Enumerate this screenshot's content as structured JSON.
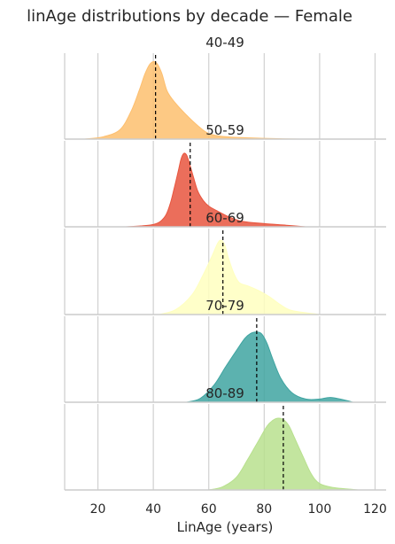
{
  "chart_data": {
    "type": "area",
    "title": "linAge distributions by decade — Female",
    "xlabel": "LinAge (years)",
    "ylabel": "",
    "xlim": [
      8,
      124
    ],
    "x_ticks": [
      20,
      40,
      60,
      80,
      100,
      120
    ],
    "grid": "vertical",
    "legend": "none",
    "series": [
      {
        "name": "40-49",
        "color": "#fdbf6f",
        "marker_x": 40.8,
        "x": [
          15,
          22,
          28,
          32,
          35,
          37,
          39,
          41,
          43,
          45,
          48,
          52,
          56,
          60,
          66,
          75,
          85,
          93
        ],
        "y": [
          0.0,
          0.03,
          0.12,
          0.35,
          0.62,
          0.82,
          0.95,
          0.96,
          0.83,
          0.6,
          0.45,
          0.3,
          0.17,
          0.07,
          0.03,
          0.015,
          0.005,
          0.0
        ]
      },
      {
        "name": "50-59",
        "color": "#e8553e",
        "marker_x": 53.3,
        "x": [
          30,
          40,
          44,
          46,
          47.5,
          49,
          50,
          51,
          52,
          53,
          54.5,
          56,
          58,
          60,
          63,
          67,
          72,
          80,
          88,
          95
        ],
        "y": [
          0.0,
          0.03,
          0.12,
          0.28,
          0.48,
          0.7,
          0.85,
          0.92,
          0.9,
          0.8,
          0.62,
          0.45,
          0.33,
          0.26,
          0.2,
          0.13,
          0.07,
          0.04,
          0.02,
          0.0
        ]
      },
      {
        "name": "60-69",
        "color": "#ffffbf",
        "marker_x": 65.1,
        "x": [
          42,
          48,
          54,
          58,
          61,
          63,
          64,
          65,
          66,
          67,
          69,
          71,
          74,
          78,
          82,
          86,
          90,
          100
        ],
        "y": [
          0.0,
          0.06,
          0.25,
          0.5,
          0.72,
          0.88,
          0.93,
          0.92,
          0.85,
          0.72,
          0.52,
          0.4,
          0.36,
          0.3,
          0.22,
          0.12,
          0.05,
          0.0
        ]
      },
      {
        "name": "70-79",
        "color": "#3fa4a1",
        "marker_x": 77.3,
        "x": [
          52,
          57,
          62,
          66,
          70,
          73,
          75,
          77,
          79,
          81,
          83,
          86,
          90,
          95,
          100,
          104,
          110,
          112
        ],
        "y": [
          0.0,
          0.05,
          0.22,
          0.44,
          0.65,
          0.8,
          0.86,
          0.88,
          0.86,
          0.74,
          0.55,
          0.3,
          0.12,
          0.04,
          0.04,
          0.06,
          0.02,
          0.0
        ]
      },
      {
        "name": "80-89",
        "color": "#b8e08e",
        "marker_x": 86.9,
        "x": [
          60,
          65,
          70,
          74,
          78,
          81,
          83,
          85,
          87,
          89,
          91,
          94,
          97,
          100,
          105,
          111,
          114
        ],
        "y": [
          0.0,
          0.04,
          0.16,
          0.38,
          0.62,
          0.8,
          0.87,
          0.9,
          0.88,
          0.8,
          0.65,
          0.42,
          0.2,
          0.08,
          0.03,
          0.01,
          0.0
        ]
      }
    ]
  }
}
